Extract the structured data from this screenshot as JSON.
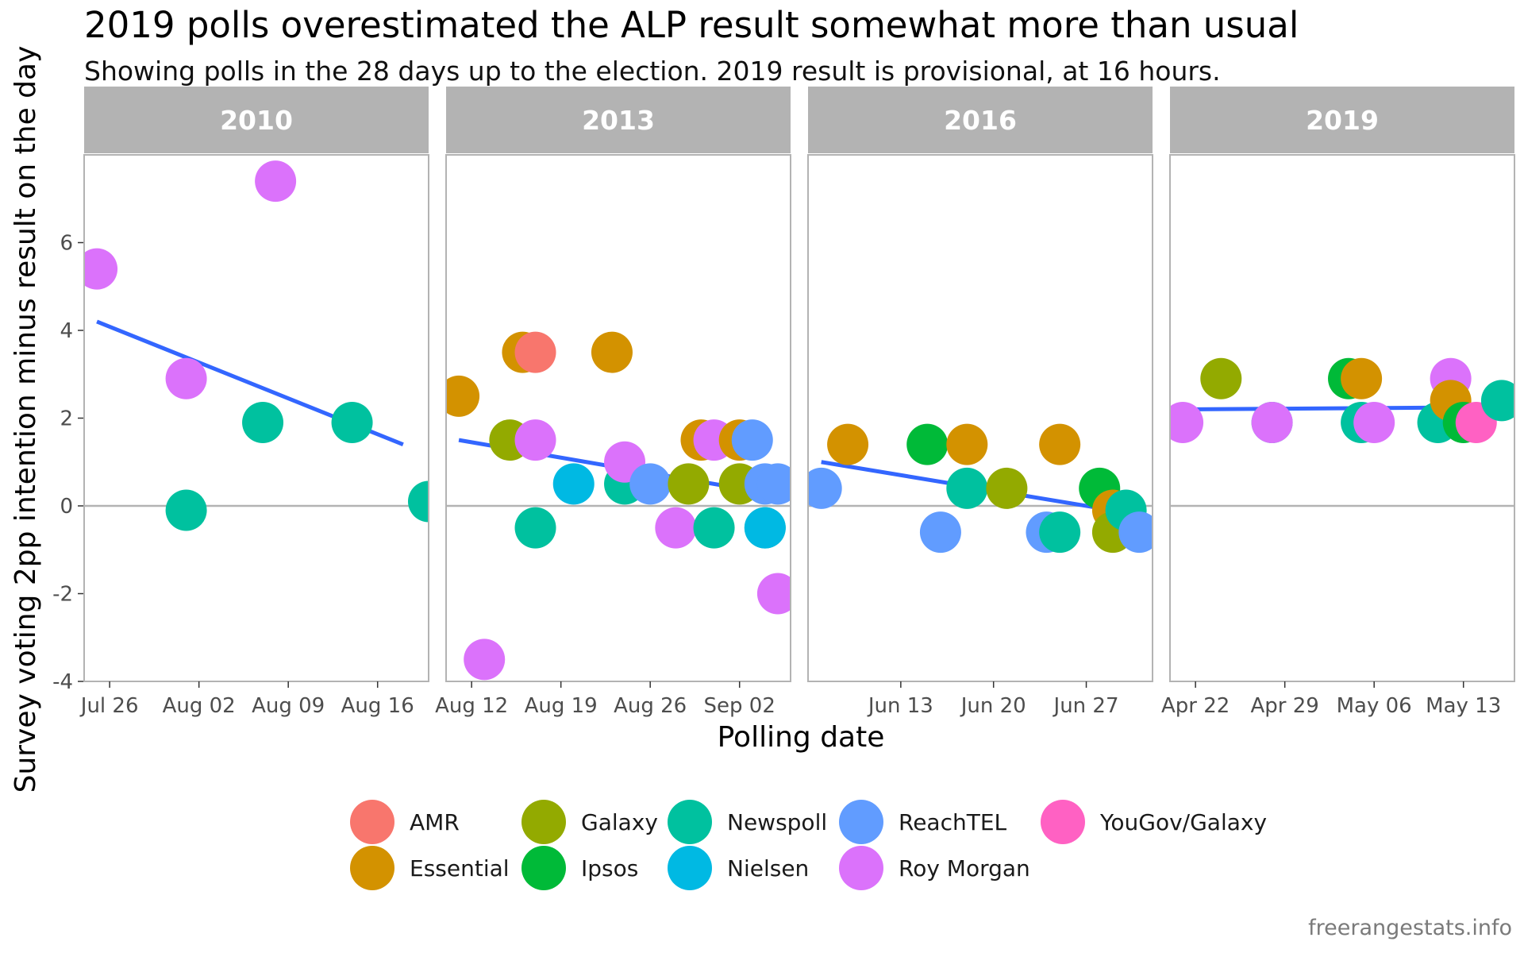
{
  "chart_data": {
    "type": "scatter",
    "title": "2019 polls overestimated the ALP result somewhat more than usual",
    "subtitle": "Showing polls in the 28 days up to the election. 2019 result is provisional, at 16 hours.",
    "xlabel": "Polling date",
    "ylabel": "Survey voting 2pp intention minus result on the day",
    "caption": "freerangestats.info",
    "ylim": [
      -4,
      8
    ],
    "y_ticks": [
      -4,
      -2,
      0,
      2,
      4,
      6
    ],
    "y_tick_labels": [
      "-4",
      "-2",
      "0",
      "2",
      "4",
      "6"
    ],
    "reference_line": 0,
    "grid": false,
    "legend_position": "bottom",
    "pollsters": [
      {
        "name": "AMR",
        "color": "#F8766D"
      },
      {
        "name": "Essential",
        "color": "#D39200"
      },
      {
        "name": "Galaxy",
        "color": "#93AA00"
      },
      {
        "name": "Ipsos",
        "color": "#00BA38"
      },
      {
        "name": "Newspoll",
        "color": "#00C19F"
      },
      {
        "name": "Nielsen",
        "color": "#00B9E3"
      },
      {
        "name": "ReachTEL",
        "color": "#619CFF"
      },
      {
        "name": "Roy Morgan",
        "color": "#DB72FB"
      },
      {
        "name": "YouGov/Galaxy",
        "color": "#FF61C3"
      }
    ],
    "trend_color": "#3366FF",
    "panels": [
      {
        "label": "2010",
        "xlim": [
          "2010-07-24",
          "2010-08-20"
        ],
        "x_ticks": [
          "2010-07-26",
          "2010-08-02",
          "2010-08-09",
          "2010-08-16"
        ],
        "x_tick_labels": [
          "Jul 26",
          "Aug 02",
          "Aug 09",
          "Aug 16"
        ],
        "trend": [
          {
            "x": "2010-07-25",
            "y": 4.2
          },
          {
            "x": "2010-08-18",
            "y": 1.4
          }
        ],
        "points": [
          {
            "x": "2010-07-25",
            "y": 5.4,
            "pollster": "Roy Morgan"
          },
          {
            "x": "2010-08-01",
            "y": -0.1,
            "pollster": "Newspoll"
          },
          {
            "x": "2010-08-01",
            "y": 2.9,
            "pollster": "Roy Morgan"
          },
          {
            "x": "2010-08-07",
            "y": 1.9,
            "pollster": "Newspoll"
          },
          {
            "x": "2010-08-08",
            "y": 7.4,
            "pollster": "Roy Morgan"
          },
          {
            "x": "2010-08-14",
            "y": 1.9,
            "pollster": "Newspoll"
          },
          {
            "x": "2010-08-20",
            "y": 0.1,
            "pollster": "Newspoll"
          }
        ]
      },
      {
        "label": "2013",
        "xlim": [
          "2013-08-10",
          "2013-09-06"
        ],
        "x_ticks": [
          "2013-08-12",
          "2013-08-19",
          "2013-08-26",
          "2013-09-02"
        ],
        "x_tick_labels": [
          "Aug 12",
          "Aug 19",
          "Aug 26",
          "Sep 02"
        ],
        "trend": [
          {
            "x": "2013-08-11",
            "y": 1.5
          },
          {
            "x": "2013-09-04",
            "y": 0.3
          }
        ],
        "points": [
          {
            "x": "2013-08-11",
            "y": 2.5,
            "pollster": "Essential"
          },
          {
            "x": "2013-08-13",
            "y": -3.5,
            "pollster": "Roy Morgan"
          },
          {
            "x": "2013-08-15",
            "y": 1.5,
            "pollster": "Galaxy"
          },
          {
            "x": "2013-08-16",
            "y": 3.5,
            "pollster": "Essential"
          },
          {
            "x": "2013-08-17",
            "y": 3.5,
            "pollster": "AMR"
          },
          {
            "x": "2013-08-17",
            "y": 1.5,
            "pollster": "Roy Morgan"
          },
          {
            "x": "2013-08-17",
            "y": -0.5,
            "pollster": "Newspoll"
          },
          {
            "x": "2013-08-20",
            "y": 0.5,
            "pollster": "Nielsen"
          },
          {
            "x": "2013-08-23",
            "y": 3.5,
            "pollster": "Essential"
          },
          {
            "x": "2013-08-24",
            "y": 0.5,
            "pollster": "Newspoll"
          },
          {
            "x": "2013-08-24",
            "y": 1.0,
            "pollster": "Roy Morgan"
          },
          {
            "x": "2013-08-26",
            "y": 0.5,
            "pollster": "ReachTEL"
          },
          {
            "x": "2013-08-28",
            "y": -0.5,
            "pollster": "Roy Morgan"
          },
          {
            "x": "2013-08-29",
            "y": 0.5,
            "pollster": "Galaxy"
          },
          {
            "x": "2013-08-30",
            "y": 1.5,
            "pollster": "Essential"
          },
          {
            "x": "2013-08-31",
            "y": 1.5,
            "pollster": "Roy Morgan"
          },
          {
            "x": "2013-08-31",
            "y": -0.5,
            "pollster": "Newspoll"
          },
          {
            "x": "2013-09-02",
            "y": 1.5,
            "pollster": "Essential"
          },
          {
            "x": "2013-09-02",
            "y": 0.5,
            "pollster": "Galaxy"
          },
          {
            "x": "2013-09-03",
            "y": 1.5,
            "pollster": "ReachTEL"
          },
          {
            "x": "2013-09-04",
            "y": 0.5,
            "pollster": "ReachTEL"
          },
          {
            "x": "2013-09-04",
            "y": -0.5,
            "pollster": "Newspoll"
          },
          {
            "x": "2013-09-04",
            "y": -0.5,
            "pollster": "Nielsen"
          },
          {
            "x": "2013-09-05",
            "y": 0.5,
            "pollster": "ReachTEL"
          },
          {
            "x": "2013-09-05",
            "y": -2.0,
            "pollster": "Roy Morgan"
          }
        ]
      },
      {
        "label": "2016",
        "xlim": [
          "2016-06-06",
          "2016-07-02"
        ],
        "x_ticks": [
          "2016-06-13",
          "2016-06-20",
          "2016-06-27"
        ],
        "x_tick_labels": [
          "Jun 13",
          "Jun 20",
          "Jun 27"
        ],
        "trend": [
          {
            "x": "2016-06-07",
            "y": 1.0
          },
          {
            "x": "2016-07-01",
            "y": -0.2
          }
        ],
        "points": [
          {
            "x": "2016-06-07",
            "y": 0.4,
            "pollster": "ReachTEL"
          },
          {
            "x": "2016-06-09",
            "y": 1.4,
            "pollster": "Essential"
          },
          {
            "x": "2016-06-15",
            "y": 1.4,
            "pollster": "Ipsos"
          },
          {
            "x": "2016-06-16",
            "y": -0.6,
            "pollster": "ReachTEL"
          },
          {
            "x": "2016-06-18",
            "y": 1.4,
            "pollster": "Essential"
          },
          {
            "x": "2016-06-18",
            "y": 0.4,
            "pollster": "Newspoll"
          },
          {
            "x": "2016-06-21",
            "y": 0.4,
            "pollster": "Galaxy"
          },
          {
            "x": "2016-06-24",
            "y": -0.6,
            "pollster": "ReachTEL"
          },
          {
            "x": "2016-06-25",
            "y": 1.4,
            "pollster": "Essential"
          },
          {
            "x": "2016-06-25",
            "y": -0.6,
            "pollster": "Newspoll"
          },
          {
            "x": "2016-06-28",
            "y": 0.4,
            "pollster": "Ipsos"
          },
          {
            "x": "2016-06-29",
            "y": -0.1,
            "pollster": "Essential"
          },
          {
            "x": "2016-06-29",
            "y": -0.6,
            "pollster": "Galaxy"
          },
          {
            "x": "2016-06-30",
            "y": -0.1,
            "pollster": "Newspoll"
          },
          {
            "x": "2016-07-01",
            "y": -0.6,
            "pollster": "ReachTEL"
          }
        ]
      },
      {
        "label": "2019",
        "xlim": [
          "2019-04-20",
          "2019-05-17"
        ],
        "x_ticks": [
          "2019-04-22",
          "2019-04-29",
          "2019-05-06",
          "2019-05-13"
        ],
        "x_tick_labels": [
          "Apr 22",
          "Apr 29",
          "May 06",
          "May 13"
        ],
        "trend": [
          {
            "x": "2019-04-21",
            "y": 2.2
          },
          {
            "x": "2019-05-16",
            "y": 2.25
          }
        ],
        "points": [
          {
            "x": "2019-04-21",
            "y": 1.9,
            "pollster": "Roy Morgan"
          },
          {
            "x": "2019-04-24",
            "y": 2.9,
            "pollster": "Galaxy"
          },
          {
            "x": "2019-04-28",
            "y": 1.9,
            "pollster": "Newspoll"
          },
          {
            "x": "2019-04-28",
            "y": 1.9,
            "pollster": "Roy Morgan"
          },
          {
            "x": "2019-05-04",
            "y": 2.9,
            "pollster": "Ipsos"
          },
          {
            "x": "2019-05-05",
            "y": 1.9,
            "pollster": "Newspoll"
          },
          {
            "x": "2019-05-05",
            "y": 2.9,
            "pollster": "Essential"
          },
          {
            "x": "2019-05-06",
            "y": 1.9,
            "pollster": "Roy Morgan"
          },
          {
            "x": "2019-05-11",
            "y": 1.9,
            "pollster": "Newspoll"
          },
          {
            "x": "2019-05-12",
            "y": 2.9,
            "pollster": "Roy Morgan"
          },
          {
            "x": "2019-05-12",
            "y": 2.4,
            "pollster": "Essential"
          },
          {
            "x": "2019-05-13",
            "y": 1.9,
            "pollster": "Ipsos"
          },
          {
            "x": "2019-05-14",
            "y": 1.9,
            "pollster": "YouGov/Galaxy"
          },
          {
            "x": "2019-05-16",
            "y": 2.4,
            "pollster": "Newspoll"
          }
        ]
      }
    ]
  }
}
